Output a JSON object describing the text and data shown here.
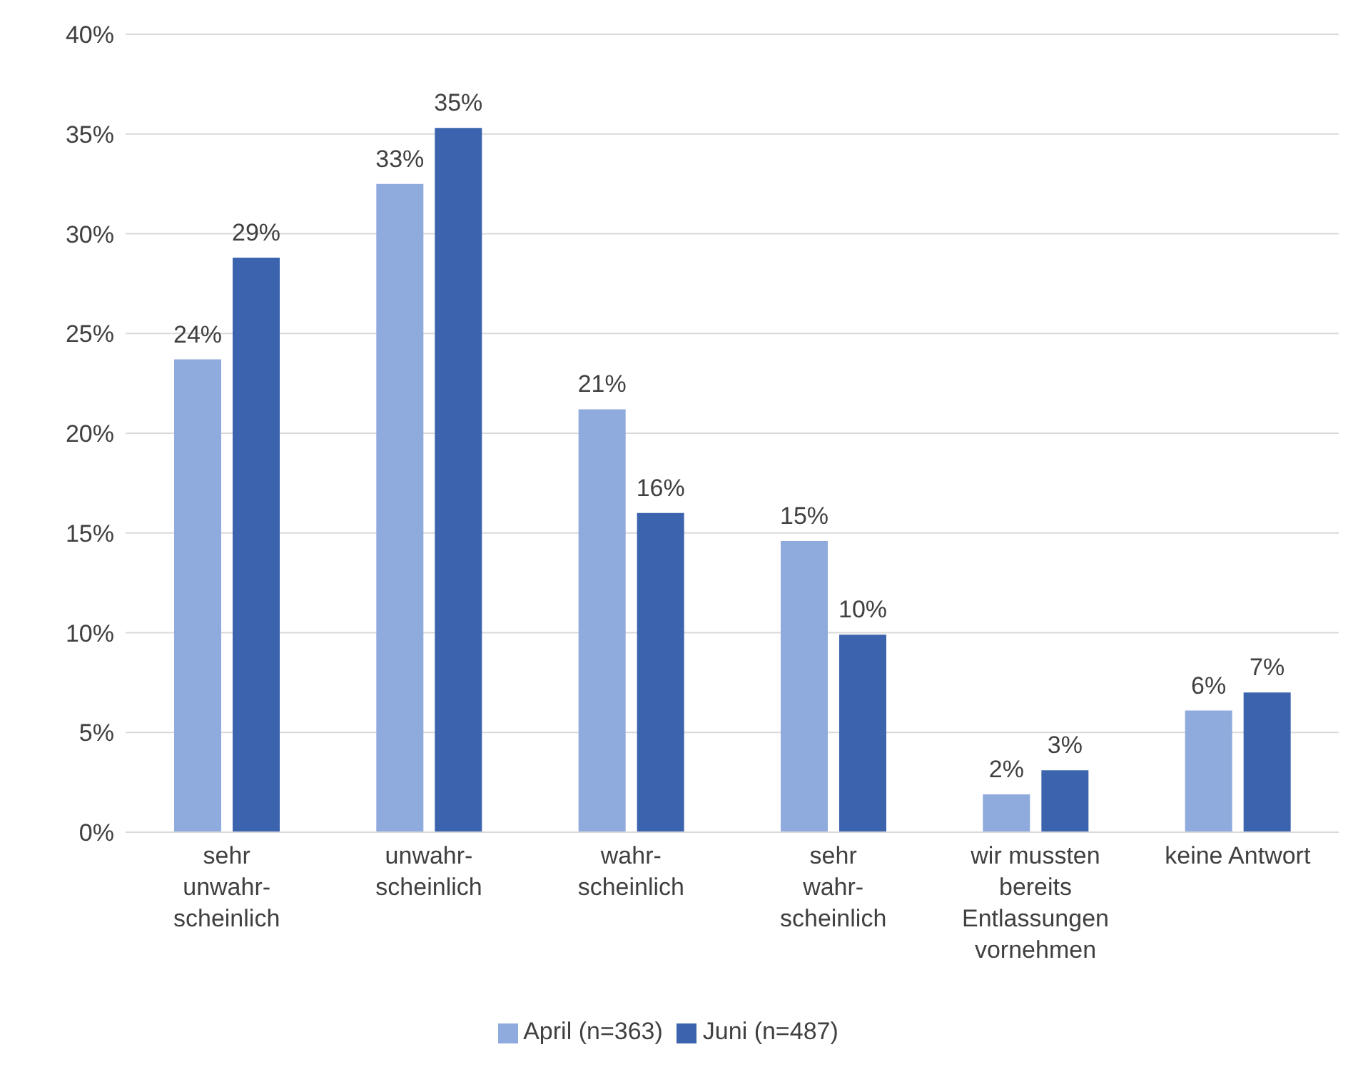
{
  "chart_data": {
    "type": "bar",
    "categories": [
      "sehr\nunwahr-\nscheinlich",
      "unwahr-\nscheinlich",
      "wahr-\nscheinlich",
      "sehr\nwahr-\nscheinlich",
      "wir mussten\nbereits\nEntlassungen\nvornehmen",
      "keine Antwort"
    ],
    "series": [
      {
        "name": "April (n=363)",
        "color": "#8faadc",
        "values": [
          23.7,
          32.5,
          21.2,
          14.6,
          1.9,
          6.1
        ],
        "value_labels": [
          "24%",
          "33%",
          "21%",
          "15%",
          "2%",
          "6%"
        ]
      },
      {
        "name": "Juni (n=487)",
        "color": "#3c64ae",
        "values": [
          28.8,
          35.3,
          16.0,
          9.9,
          3.1,
          7.0
        ],
        "value_labels": [
          "29%",
          "35%",
          "16%",
          "10%",
          "3%",
          "7%"
        ]
      }
    ],
    "ylim": [
      0,
      40
    ],
    "yticks": [
      {
        "value": 0,
        "label": "0%"
      },
      {
        "value": 5,
        "label": "5%"
      },
      {
        "value": 10,
        "label": "10%"
      },
      {
        "value": 15,
        "label": "15%"
      },
      {
        "value": 20,
        "label": "20%"
      },
      {
        "value": 25,
        "label": "25%"
      },
      {
        "value": 30,
        "label": "30%"
      },
      {
        "value": 35,
        "label": "35%"
      },
      {
        "value": 40,
        "label": "40%"
      }
    ],
    "grid": "y",
    "legend": "bottom"
  }
}
